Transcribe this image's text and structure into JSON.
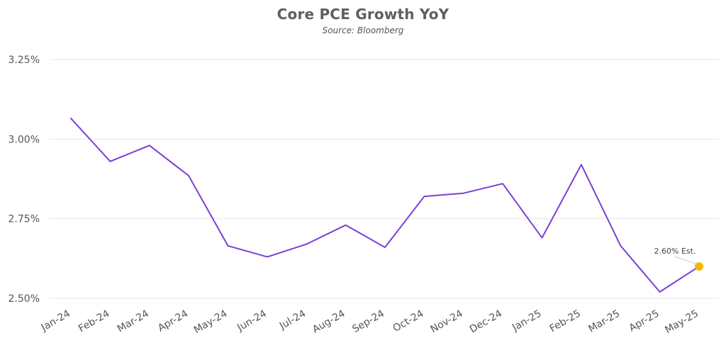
{
  "chart_data": {
    "type": "line",
    "title": "Core PCE Growth YoY",
    "subtitle": "Source: Bloomberg",
    "xlabel": "",
    "ylabel": "",
    "categories": [
      "Jan-24",
      "Feb-24",
      "Mar-24",
      "Apr-24",
      "May-24",
      "Jun-24",
      "Jul-24",
      "Aug-24",
      "Sep-24",
      "Oct-24",
      "Nov-24",
      "Dec-24",
      "Jan-25",
      "Feb-25",
      "Mar-25",
      "Apr-25",
      "May-25"
    ],
    "series": [
      {
        "color": "#7b3fd6",
        "values": [
          3.065,
          2.93,
          2.98,
          2.885,
          2.665,
          2.63,
          2.67,
          2.73,
          2.66,
          2.82,
          2.83,
          2.86,
          2.69,
          2.92,
          2.665,
          2.52,
          2.6
        ]
      }
    ],
    "ylim": [
      2.5,
      3.25
    ],
    "yticks": [
      2.5,
      2.75,
      3.0,
      3.25
    ],
    "ytick_labels": [
      "2.50%",
      "2.75%",
      "3.00%",
      "3.25%"
    ],
    "grid": true,
    "annotation": {
      "category": "May-25",
      "value": 2.6,
      "text": "2.60% Est.",
      "marker_color": "#f5b800"
    }
  }
}
